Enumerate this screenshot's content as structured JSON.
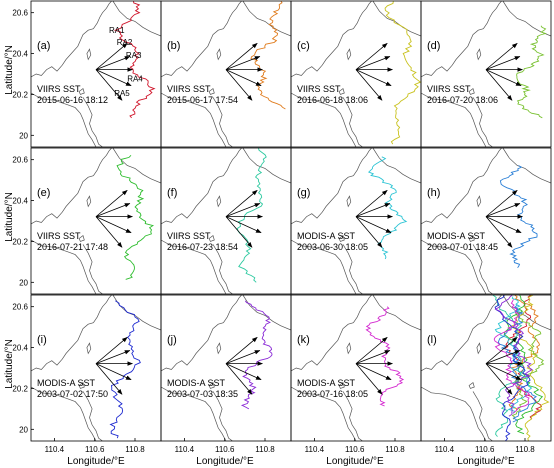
{
  "figure": {
    "xlabel": "Longitude/°E",
    "ylabel": "Latitude/°N",
    "x_ticks": [
      "110.4",
      "110.6",
      "110.8"
    ],
    "y_ticks": [
      "20.6",
      "20.4",
      "20.2",
      "20"
    ],
    "ray_labels": [
      "RA1",
      "RA2",
      "RA3",
      "RA4",
      "RA5"
    ]
  },
  "panels": [
    {
      "letter": "(a)",
      "sensor": "VIIRS SST",
      "date": "2015-06-16 18:12",
      "color": "#d0152b",
      "show_ray_labels": true
    },
    {
      "letter": "(b)",
      "sensor": "VIIRS SST",
      "date": "2015-06-17 17:54",
      "color": "#e07c1e"
    },
    {
      "letter": "(c)",
      "sensor": "VIIRS SST",
      "date": "2016-06-18 18:06",
      "color": "#c9c21f"
    },
    {
      "letter": "(d)",
      "sensor": "VIIRS SST",
      "date": "2016-07-20 18:06",
      "color": "#7ac232"
    },
    {
      "letter": "(e)",
      "sensor": "VIIRS SST",
      "date": "2016-07-21 17:48",
      "color": "#2fbd2f"
    },
    {
      "letter": "(f)",
      "sensor": "VIIRS SST",
      "date": "2016-07-23 18:54",
      "color": "#2ec9a0"
    },
    {
      "letter": "(g)",
      "sensor": "MODIS-A SST",
      "date": "2003-06-30 18:05",
      "color": "#2cc4d4"
    },
    {
      "letter": "(h)",
      "sensor": "MODIS-A SST",
      "date": "2003-07-01 18:45",
      "color": "#2a7fd6"
    },
    {
      "letter": "(i)",
      "sensor": "MODIS-A SST",
      "date": "2003-07-02 17:50",
      "color": "#1f2bd0"
    },
    {
      "letter": "(j)",
      "sensor": "MODIS-A SST",
      "date": "2003-07-03 18:35",
      "color": "#8a2ad6"
    },
    {
      "letter": "(k)",
      "sensor": "MODIS-A SST",
      "date": "2003-07-16 18:05",
      "color": "#d42ad0"
    },
    {
      "letter": "(l)",
      "sensor": "",
      "date": "",
      "color": "#000000",
      "composite": true
    }
  ]
}
